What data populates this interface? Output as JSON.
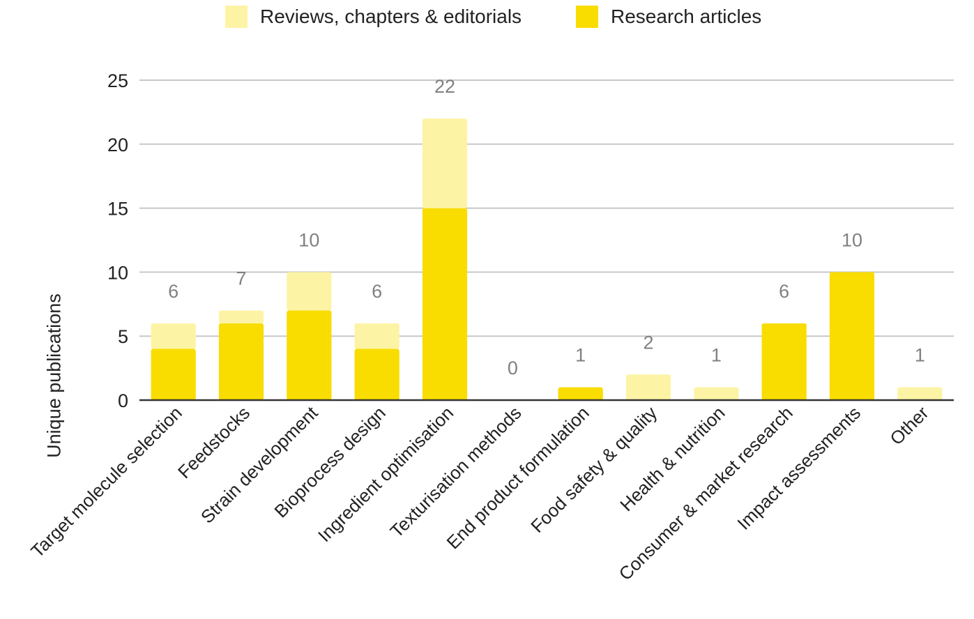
{
  "chart_data": {
    "type": "bar",
    "stacked": true,
    "categories": [
      "Target molecule selection",
      "Feedstocks",
      "Strain development",
      "Bioprocess design",
      "Ingredient optimisation",
      "Texturisation methods",
      "End product formulation",
      "Food safety & quality",
      "Health & nutrition",
      "Consumer & market research",
      "Impact assessments",
      "Other"
    ],
    "series": [
      {
        "name": "Research articles",
        "color": "#f9dc00",
        "values": [
          4,
          6,
          7,
          4,
          15,
          0,
          1,
          0,
          0,
          6,
          10,
          0
        ]
      },
      {
        "name": "Reviews, chapters & editorials",
        "color": "#fcf4a4",
        "values": [
          2,
          1,
          3,
          2,
          7,
          0,
          0,
          2,
          1,
          0,
          0,
          1
        ]
      }
    ],
    "totals": [
      6,
      7,
      10,
      6,
      22,
      0,
      1,
      2,
      1,
      6,
      10,
      1
    ],
    "title": "",
    "xlabel": "",
    "ylabel": "Unique publications",
    "ylim": [
      0,
      25
    ],
    "yticks": [
      0,
      5,
      10,
      15,
      20,
      25
    ],
    "grid": true,
    "legend_position": "top",
    "legend_order": [
      "Reviews, chapters & editorials",
      "Research articles"
    ]
  }
}
